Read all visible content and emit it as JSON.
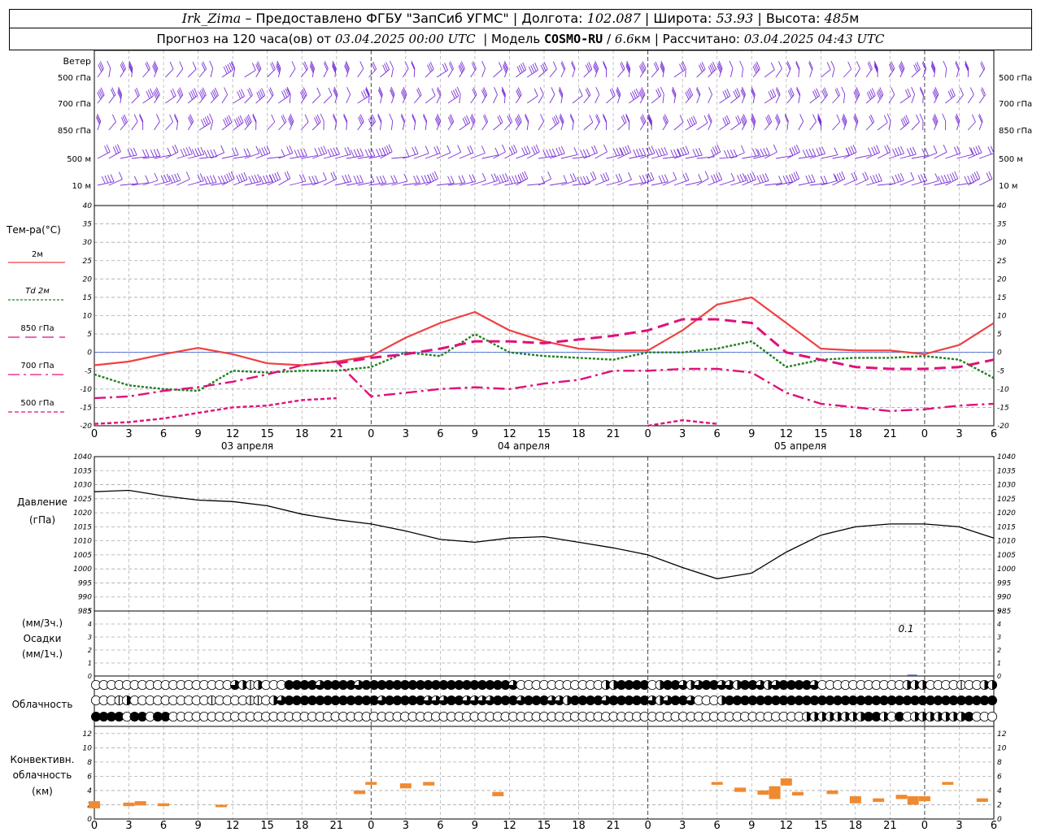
{
  "header": {
    "station": "Irk_Zima",
    "provider": "– Предоставлено ФГБУ \"ЗапСиб УГМС\"",
    "lon_label": "Долгота:",
    "lon": "102.087",
    "lat_label": "Широта:",
    "lat": "53.93",
    "alt_label": "Высота:",
    "alt": "485",
    "alt_unit": "м",
    "forecast_label": "Прогноз на 120 часа(ов) от",
    "forecast_start": "03.04.2025 00:00 UTC",
    "model_label": "Модель",
    "model": "COSMO-RU",
    "resolution": "6.6",
    "res_unit": "км",
    "calc_label": "Рассчитано:",
    "calc_time": "03.04.2025 04:43 UTC"
  },
  "wind_panel": {
    "title": "Ветер",
    "levels": [
      "500 гПа",
      "700 гПа",
      "850 гПа",
      "500 м",
      "10 м"
    ]
  },
  "temp_panel": {
    "title": "Тем-ра(°C)",
    "legend": [
      {
        "label": "2м",
        "color": "#f04040",
        "style": "solid"
      },
      {
        "label": "Td 2м",
        "color": "#208020",
        "style": "dotted"
      },
      {
        "label": "850 гПа",
        "color": "#e0107a",
        "style": "dashed"
      },
      {
        "label": "700 гПа",
        "color": "#e0107a",
        "style": "dashdot"
      },
      {
        "label": "500 гПа",
        "color": "#e0107a",
        "style": "dense"
      }
    ],
    "days": [
      "03 апреля",
      "04 апреля",
      "05 апреля"
    ]
  },
  "pressure_panel": {
    "title": "Давление",
    "unit": "(гПа)"
  },
  "precip_panel": {
    "title1": "(мм/3ч.)",
    "title2": "Осадки",
    "title3": "(мм/1ч.)",
    "annotation": "0.1"
  },
  "cloud_panel": {
    "title": "Облачность"
  },
  "conv_panel": {
    "title1": "Конвективн.",
    "title2": "облачность",
    "title3": "(км)"
  },
  "chart_data": [
    {
      "type": "line",
      "title": "Тем-ра(°C)",
      "x_ticks": [
        "0",
        "3",
        "6",
        "9",
        "12",
        "15",
        "18",
        "21",
        "0",
        "3",
        "6",
        "9",
        "12",
        "15",
        "18",
        "21",
        "0",
        "3",
        "6",
        "9",
        "12",
        "15",
        "18",
        "21",
        "0",
        "3",
        "6"
      ],
      "ylim": [
        -20,
        40
      ],
      "yticks": [
        -20,
        -15,
        -10,
        -5,
        0,
        5,
        10,
        15,
        20,
        25,
        30,
        35,
        40
      ],
      "x": [
        0,
        3,
        6,
        9,
        12,
        15,
        18,
        21,
        24,
        27,
        30,
        33,
        36,
        39,
        42,
        45,
        48,
        51,
        54,
        57,
        60,
        63,
        66,
        69,
        72,
        75,
        78
      ],
      "series": [
        {
          "name": "2м",
          "values": [
            -3.5,
            -2.5,
            -0.5,
            1.2,
            -0.5,
            -3,
            -3.5,
            -2.5,
            -1,
            4,
            8,
            11,
            6,
            3,
            1,
            0.5,
            0.5,
            6,
            13,
            15,
            8,
            1,
            0.5,
            0.5,
            -0.5,
            2,
            8
          ]
        },
        {
          "name": "Td 2м",
          "values": [
            -6,
            -9,
            -10,
            -10.5,
            -5,
            -5.5,
            -5,
            -5,
            -4,
            0,
            -1,
            5,
            0,
            -1,
            -1.5,
            -2,
            0,
            0,
            1,
            3,
            -4,
            -2,
            -1.5,
            -1.5,
            -1,
            -2,
            -7
          ]
        },
        {
          "name": "850 гПа",
          "values": [
            null,
            null,
            null,
            null,
            null,
            null,
            null,
            -3,
            -1.5,
            -0.5,
            1,
            3,
            3,
            2.5,
            3.5,
            4.5,
            6,
            9,
            9,
            8,
            0,
            -2,
            -4,
            -4.5,
            -4.5,
            -4,
            -2
          ]
        },
        {
          "name": "700 гПа",
          "values": [
            -12.5,
            -12,
            -10.5,
            -9.5,
            -8,
            -6,
            -3.5,
            -2.5,
            -12,
            -11,
            -10,
            -9.5,
            -10,
            -8.5,
            -7.5,
            -5,
            -5,
            -4.5,
            -4.5,
            -5.5,
            -11,
            -14,
            -15,
            -16,
            -15.5,
            -14.5,
            -14
          ]
        },
        {
          "name": "500 гПа",
          "values": [
            -19.5,
            -19,
            -18,
            -16.5,
            -15,
            -14.5,
            -13,
            -12.5,
            null,
            null,
            null,
            null,
            null,
            null,
            null,
            null,
            -20,
            -18.5,
            -19.5,
            null,
            null,
            null,
            null,
            null,
            null,
            null,
            null
          ]
        }
      ]
    },
    {
      "type": "line",
      "title": "Давление",
      "ylim": [
        985,
        1040
      ],
      "yticks": [
        985,
        990,
        995,
        1000,
        1005,
        1010,
        1015,
        1020,
        1025,
        1030,
        1035,
        1040
      ],
      "x": [
        0,
        3,
        6,
        9,
        12,
        15,
        18,
        21,
        24,
        27,
        30,
        33,
        36,
        39,
        42,
        45,
        48,
        51,
        54,
        57,
        60,
        63,
        66,
        69,
        72,
        75,
        78
      ],
      "series": [
        {
          "name": "",
          "values": [
            1027.5,
            1028,
            1026,
            1024.5,
            1024,
            1022.5,
            1019.5,
            1017.5,
            1016,
            1013.5,
            1010.5,
            1009.5,
            1011,
            1011.5,
            1009.5,
            1007.5,
            1005,
            1000.5,
            996.5,
            998.5,
            1006,
            1012,
            1015,
            1016,
            1016,
            1015,
            1011
          ]
        }
      ]
    },
    {
      "type": "bar",
      "title": "Осадки",
      "ylim": [
        0,
        5
      ],
      "yticks": [
        0,
        1,
        2,
        3,
        4,
        5
      ],
      "annotations": [
        "0.1"
      ]
    },
    {
      "type": "bar",
      "title": "Конвективн. облачность (км)",
      "ylim": [
        0,
        13
      ],
      "yticks": [
        0,
        2,
        4,
        6,
        8,
        10,
        12
      ],
      "segments": [
        {
          "x": 0,
          "base": 1.5,
          "top": 2.5
        },
        {
          "x": 3,
          "base": 1.8,
          "top": 2.3
        },
        {
          "x": 4,
          "base": 1.9,
          "top": 2.5
        },
        {
          "x": 6,
          "base": 1.8,
          "top": 2.2
        },
        {
          "x": 11,
          "base": 1.8,
          "top": 2.0
        },
        {
          "x": 23,
          "base": 3.5,
          "top": 4.0
        },
        {
          "x": 24,
          "base": 4.8,
          "top": 5.2
        },
        {
          "x": 27,
          "base": 4.3,
          "top": 5.0
        },
        {
          "x": 29,
          "base": 4.7,
          "top": 5.2
        },
        {
          "x": 35,
          "base": 3.2,
          "top": 3.8
        },
        {
          "x": 54,
          "base": 4.8,
          "top": 5.2
        },
        {
          "x": 56,
          "base": 3.8,
          "top": 4.4
        },
        {
          "x": 58,
          "base": 3.4,
          "top": 4.0
        },
        {
          "x": 59,
          "base": 2.8,
          "top": 4.6
        },
        {
          "x": 60,
          "base": 4.7,
          "top": 5.7
        },
        {
          "x": 61,
          "base": 3.3,
          "top": 3.8
        },
        {
          "x": 64,
          "base": 3.5,
          "top": 4.0
        },
        {
          "x": 66,
          "base": 2.2,
          "top": 3.2
        },
        {
          "x": 68,
          "base": 2.4,
          "top": 2.9
        },
        {
          "x": 70,
          "base": 2.8,
          "top": 3.4
        },
        {
          "x": 71,
          "base": 2.0,
          "top": 3.2
        },
        {
          "x": 72,
          "base": 2.5,
          "top": 3.2
        },
        {
          "x": 74,
          "base": 4.8,
          "top": 5.2
        },
        {
          "x": 77,
          "base": 2.4,
          "top": 2.9
        }
      ]
    }
  ],
  "clouds": {
    "rows": [
      [
        0,
        0,
        0,
        0,
        0,
        0,
        0,
        0,
        0,
        0,
        0,
        0,
        0,
        0,
        0,
        0,
        0,
        0,
        3,
        2,
        1,
        2,
        0,
        0,
        0,
        4,
        4,
        4,
        4,
        3,
        4,
        4,
        4,
        4,
        3,
        4,
        4,
        4,
        4,
        4,
        4,
        4,
        4,
        4,
        4,
        4,
        4,
        4,
        4,
        4,
        4,
        4,
        4,
        4,
        3,
        0,
        0,
        0,
        0,
        0,
        0,
        0,
        0,
        0,
        0,
        0,
        2,
        2,
        4,
        4,
        4,
        4,
        0,
        2,
        4,
        4,
        3,
        2,
        3,
        4,
        4,
        3,
        3,
        2,
        4,
        4,
        3,
        2,
        3,
        4,
        4,
        4,
        4,
        3,
        0,
        0,
        0,
        0,
        0,
        0,
        0,
        0,
        0,
        0,
        0,
        2,
        2,
        2,
        0,
        0,
        0,
        0,
        1,
        0,
        0,
        2,
        2
      ],
      [
        0,
        0,
        0,
        1,
        2,
        0,
        0,
        0,
        0,
        0,
        0,
        0,
        0,
        0,
        0,
        1,
        0,
        0,
        0,
        0,
        1,
        1,
        0,
        2,
        3,
        4,
        4,
        4,
        4,
        4,
        4,
        4,
        4,
        4,
        4,
        4,
        4,
        3,
        4,
        4,
        4,
        4,
        4,
        3,
        3,
        3,
        4,
        4,
        3,
        3,
        3,
        3,
        4,
        4,
        4,
        3,
        4,
        4,
        4,
        3,
        3,
        2,
        4,
        4,
        4,
        4,
        3,
        4,
        4,
        4,
        4,
        4,
        3,
        2,
        3,
        4,
        4,
        3,
        0,
        0,
        0,
        2,
        4,
        4,
        4,
        4,
        4,
        4,
        4,
        4,
        4,
        4,
        4,
        4,
        4,
        4,
        4,
        4,
        4,
        4,
        4,
        4,
        4,
        4,
        4,
        4,
        4,
        4,
        4,
        4,
        4,
        4,
        4,
        4,
        4,
        4,
        4
      ],
      [
        4,
        4,
        4,
        4,
        0,
        4,
        4,
        0,
        4,
        4,
        0,
        0,
        0,
        0,
        0,
        0,
        0,
        0,
        0,
        0,
        0,
        0,
        0,
        0,
        0,
        0,
        0,
        0,
        0,
        0,
        0,
        0,
        0,
        0,
        0,
        0,
        0,
        0,
        0,
        0,
        0,
        0,
        0,
        0,
        0,
        0,
        0,
        0,
        0,
        0,
        0,
        0,
        0,
        0,
        0,
        0,
        0,
        0,
        0,
        0,
        0,
        0,
        0,
        0,
        0,
        0,
        0,
        0,
        0,
        0,
        0,
        0,
        0,
        0,
        0,
        0,
        0,
        0,
        0,
        0,
        0,
        0,
        0,
        0,
        0,
        0,
        0,
        0,
        0,
        0,
        0,
        0,
        2,
        2,
        2,
        2,
        2,
        2,
        2,
        2,
        4,
        4,
        2,
        0,
        4,
        0,
        2,
        2,
        2,
        2,
        2,
        2,
        2,
        4,
        0,
        0,
        0
      ]
    ]
  }
}
